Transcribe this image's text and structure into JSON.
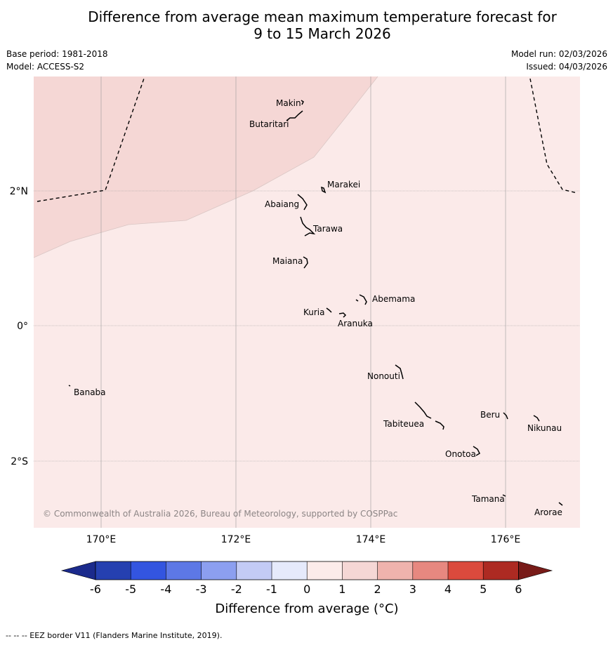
{
  "title": {
    "line1": "Difference from average mean maximum temperature forecast for",
    "line2": "9 to 15 March 2026"
  },
  "meta": {
    "base_period": "Base period: 1981-2018",
    "model": "Model: ACCESS-S2",
    "model_run": "Model run: 02/03/2026",
    "issued": "Issued: 04/03/2026"
  },
  "map": {
    "lon_range": [
      169.0,
      177.1
    ],
    "lat_range": [
      -3.0,
      3.7
    ],
    "lon_ticks": [
      "170°E",
      "172°E",
      "174°E",
      "176°E"
    ],
    "lat_ticks": [
      "2°N",
      "0°",
      "2°S"
    ],
    "colors": {
      "band_0_1": "#fbeae9",
      "band_1_2": "#f5d7d5",
      "eez": "#000000"
    },
    "places": [
      "Makin",
      "Butaritari",
      "Marakei",
      "Abaiang",
      "Tarawa",
      "Maiana",
      "Abemama",
      "Kuria",
      "Aranuka",
      "Nonouti",
      "Banaba",
      "Beru",
      "Nikunau",
      "Tabiteuea",
      "Onotoa",
      "Tamana",
      "Arorae"
    ],
    "copyright": "© Commonwealth of Australia 2026, Bureau of Meteorology, supported by COSPPac"
  },
  "colorbar": {
    "ticks": [
      "-6",
      "-5",
      "-4",
      "-3",
      "-2",
      "-1",
      "0",
      "1",
      "2",
      "3",
      "4",
      "5",
      "6"
    ],
    "colors": [
      "#1b2a8c",
      "#2540b0",
      "#3355e0",
      "#5d78e6",
      "#8c9ff0",
      "#c3cbf5",
      "#e6eafb",
      "#fcecea",
      "#f5d7d5",
      "#efb3ad",
      "#e78880",
      "#db4a3d",
      "#ad2a22",
      "#781b18"
    ],
    "label": "Difference from average (°C)"
  },
  "footnote": "--  --  -- EEZ border V11 (Flanders Marine Institute, 2019)."
}
